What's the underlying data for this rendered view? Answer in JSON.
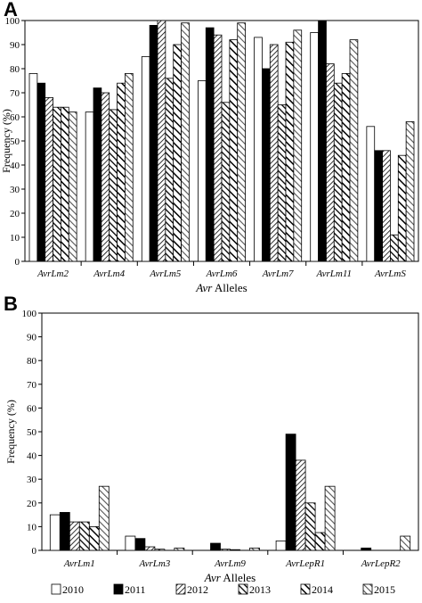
{
  "chart_data": [
    {
      "type": "bar",
      "panel_label": "A",
      "title": "",
      "xlabel_italic": "Avr",
      "xlabel_rest": " Alleles",
      "ylabel": "Frequency (%)",
      "ylim": [
        0,
        100
      ],
      "yticks": [
        0,
        10,
        20,
        30,
        40,
        50,
        60,
        70,
        80,
        90,
        100
      ],
      "categories": [
        "AvrLm2",
        "AvrLm4",
        "AvrLm5",
        "AvrLm6",
        "AvrLm7",
        "AvrLm11",
        "AvrLmS"
      ],
      "series": [
        {
          "name": "2010",
          "values": [
            78,
            62,
            85,
            75,
            93,
            95,
            56
          ]
        },
        {
          "name": "2011",
          "values": [
            74,
            72,
            98,
            97,
            80,
            100,
            46
          ]
        },
        {
          "name": "2012",
          "values": [
            68,
            70,
            100,
            94,
            90,
            82,
            46
          ]
        },
        {
          "name": "2013",
          "values": [
            64,
            63,
            76,
            66,
            65,
            74,
            11
          ]
        },
        {
          "name": "2014",
          "values": [
            64,
            74,
            90,
            92,
            91,
            78,
            44
          ]
        },
        {
          "name": "2015",
          "values": [
            62,
            78,
            99,
            99,
            96,
            92,
            58
          ]
        }
      ]
    },
    {
      "type": "bar",
      "panel_label": "B",
      "title": "",
      "xlabel_italic": "Avr",
      "xlabel_rest": " Alleles",
      "ylabel": "Frequency (%)",
      "ylim": [
        0,
        100
      ],
      "yticks": [
        0,
        10,
        20,
        30,
        40,
        50,
        60,
        70,
        80,
        90,
        100
      ],
      "categories": [
        "AvrLm1",
        "AvrLm3",
        "AvrLm9",
        "AvrLepR1",
        "AvrLepR2"
      ],
      "series": [
        {
          "name": "2010",
          "values": [
            15,
            6,
            0,
            4,
            0
          ]
        },
        {
          "name": "2011",
          "values": [
            16,
            5,
            3,
            49,
            1
          ]
        },
        {
          "name": "2012",
          "values": [
            12,
            1.5,
            0.5,
            38,
            0
          ]
        },
        {
          "name": "2013",
          "values": [
            12,
            0.5,
            0.3,
            20,
            0
          ]
        },
        {
          "name": "2014",
          "values": [
            10,
            0,
            0,
            7.5,
            0
          ]
        },
        {
          "name": "2015",
          "values": [
            27,
            1,
            1,
            27,
            6
          ]
        }
      ]
    }
  ],
  "legend": [
    "2010",
    "2011",
    "2012",
    "2013",
    "2014",
    "2015"
  ],
  "series_styles": [
    "white",
    "black",
    "diag-fine",
    "diag-bold",
    "diag-mixed",
    "diag-gray"
  ],
  "legend_placement": "bottom"
}
